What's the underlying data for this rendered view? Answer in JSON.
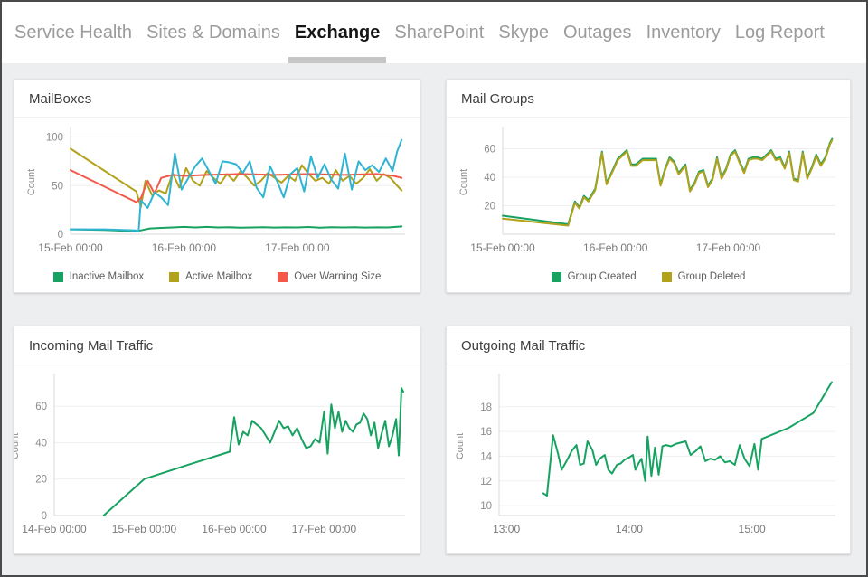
{
  "tabs": {
    "items": [
      {
        "label": "Service Health",
        "active": false
      },
      {
        "label": "Sites & Domains",
        "active": false
      },
      {
        "label": "Exchange",
        "active": true
      },
      {
        "label": "SharePoint",
        "active": false
      },
      {
        "label": "Skype",
        "active": false
      },
      {
        "label": "Outages",
        "active": false
      },
      {
        "label": "Inventory",
        "active": false
      },
      {
        "label": "Log Report",
        "active": false
      }
    ]
  },
  "colors": {
    "green": "#17a261",
    "olive": "#b1a11b",
    "red": "#f4584a",
    "cyan": "#2fb4d3",
    "grid": "#efefef",
    "axis": "#d9d9d9",
    "tick_text": "#8b8b8b",
    "active_tab_underline": "#c6c6c6"
  },
  "chart_data": [
    {
      "type": "line",
      "title": "MailBoxes",
      "ylabel": "Count",
      "ylim": [
        0,
        107
      ],
      "yticks": [
        0,
        50,
        100
      ],
      "xlim": [
        0,
        2.95
      ],
      "ml": 62,
      "xticks": [
        {
          "v": 0,
          "label": "15-Feb 00:00"
        },
        {
          "v": 1,
          "label": "16-Feb 00:00"
        },
        {
          "v": 2,
          "label": "17-Feb 00:00"
        }
      ],
      "legend": [
        {
          "label": "Inactive Mailbox",
          "color": "#17a261"
        },
        {
          "label": "Active Mailbox",
          "color": "#b1a11b"
        },
        {
          "label": "Over Warning Size",
          "color": "#f4584a"
        }
      ],
      "series": [
        {
          "name": "Inactive Mailbox",
          "color": "#17a261",
          "x": [
            0,
            0.3,
            0.58,
            0.62,
            0.7,
            0.8,
            0.9,
            1.0,
            1.1,
            1.2,
            1.3,
            1.4,
            1.5,
            1.6,
            1.7,
            1.8,
            1.9,
            2.0,
            2.1,
            2.2,
            2.3,
            2.4,
            2.5,
            2.6,
            2.7,
            2.8,
            2.92
          ],
          "y": [
            5,
            4.5,
            3,
            4,
            6,
            6.5,
            7,
            7.5,
            7,
            7.5,
            7,
            7.2,
            6.8,
            7,
            7.3,
            6.9,
            7.1,
            7,
            7.4,
            6.8,
            7.2,
            7,
            7.3,
            6.9,
            7.1,
            7,
            8
          ]
        },
        {
          "name": "Active Mailbox",
          "color": "#b1a11b",
          "x": [
            0,
            0.58,
            0.62,
            0.66,
            0.72,
            0.78,
            0.84,
            0.9,
            0.96,
            1.02,
            1.08,
            1.14,
            1.2,
            1.26,
            1.32,
            1.38,
            1.44,
            1.5,
            1.56,
            1.62,
            1.68,
            1.74,
            1.8,
            1.86,
            1.92,
            1.98,
            2.04,
            2.1,
            2.16,
            2.22,
            2.28,
            2.34,
            2.4,
            2.46,
            2.52,
            2.58,
            2.64,
            2.7,
            2.76,
            2.82,
            2.88,
            2.92
          ],
          "y": [
            88,
            44,
            28,
            55,
            40,
            45,
            42,
            63,
            48,
            68,
            55,
            50,
            65,
            58,
            52,
            62,
            55,
            65,
            58,
            50,
            55,
            63,
            58,
            53,
            60,
            55,
            71,
            62,
            55,
            58,
            52,
            66,
            55,
            60,
            52,
            58,
            67,
            55,
            62,
            58,
            50,
            45
          ]
        },
        {
          "name": "Over Warning Size",
          "color": "#f4584a",
          "x": [
            0,
            0.58,
            0.62,
            0.68,
            0.74,
            0.8,
            0.9,
            1.0,
            1.2,
            1.5,
            1.8,
            2.1,
            2.4,
            2.7,
            2.85,
            2.92
          ],
          "y": [
            66,
            33,
            37,
            55,
            42,
            58,
            61,
            60,
            61,
            62,
            61,
            62,
            61,
            62,
            60,
            58
          ]
        },
        {
          "name": "",
          "color": "#2fb4d3",
          "x": [
            0,
            0.3,
            0.58,
            0.6,
            0.62,
            0.68,
            0.74,
            0.8,
            0.86,
            0.92,
            0.98,
            1.04,
            1.1,
            1.16,
            1.22,
            1.28,
            1.34,
            1.4,
            1.46,
            1.52,
            1.58,
            1.64,
            1.7,
            1.76,
            1.82,
            1.88,
            1.94,
            2.0,
            2.06,
            2.12,
            2.18,
            2.24,
            2.3,
            2.36,
            2.42,
            2.48,
            2.54,
            2.6,
            2.66,
            2.72,
            2.78,
            2.84,
            2.88,
            2.92
          ],
          "y": [
            5,
            5,
            4,
            3,
            35,
            27,
            43,
            38,
            30,
            83,
            46,
            58,
            70,
            78,
            65,
            52,
            75,
            74,
            72,
            63,
            75,
            48,
            38,
            70,
            55,
            38,
            62,
            68,
            44,
            80,
            58,
            72,
            56,
            47,
            83,
            46,
            75,
            66,
            71,
            64,
            78,
            65,
            85,
            97
          ]
        }
      ]
    },
    {
      "type": "line",
      "title": "Mail Groups",
      "ylabel": "Count",
      "ylim": [
        0,
        73
      ],
      "yticks": [
        20,
        40,
        60
      ],
      "xlim": [
        0,
        2.95
      ],
      "ml": 62,
      "xticks": [
        {
          "v": 0,
          "label": "15-Feb 00:00"
        },
        {
          "v": 1,
          "label": "16-Feb 00:00"
        },
        {
          "v": 2,
          "label": "17-Feb 00:00"
        }
      ],
      "legend": [
        {
          "label": "Group Created",
          "color": "#17a261"
        },
        {
          "label": "Group Deleted",
          "color": "#b1a11b"
        }
      ],
      "series": [
        {
          "name": "Group Created",
          "color": "#17a261",
          "x": [
            0,
            0.58,
            0.64,
            0.68,
            0.72,
            0.76,
            0.82,
            0.88,
            0.92,
            0.98,
            1.02,
            1.06,
            1.1,
            1.14,
            1.18,
            1.24,
            1.3,
            1.36,
            1.4,
            1.44,
            1.48,
            1.52,
            1.56,
            1.62,
            1.66,
            1.7,
            1.74,
            1.78,
            1.82,
            1.86,
            1.9,
            1.94,
            1.98,
            2.02,
            2.06,
            2.1,
            2.14,
            2.18,
            2.22,
            2.26,
            2.3,
            2.34,
            2.38,
            2.42,
            2.46,
            2.5,
            2.54,
            2.58,
            2.62,
            2.66,
            2.7,
            2.74,
            2.78,
            2.82,
            2.86,
            2.9,
            2.92
          ],
          "y": [
            13,
            7,
            23,
            19,
            27,
            24,
            32,
            58,
            36,
            46,
            53,
            56,
            59,
            49,
            49,
            53,
            53,
            53,
            35,
            46,
            54,
            51,
            43,
            49,
            31,
            36,
            44,
            45,
            34,
            39,
            54,
            40,
            46,
            56,
            59,
            51,
            44,
            53,
            54,
            54,
            53,
            56,
            59,
            53,
            54,
            47,
            58,
            39,
            38,
            58,
            40,
            47,
            56,
            49,
            54,
            64,
            67
          ]
        },
        {
          "name": "Group Deleted",
          "color": "#b1a11b",
          "x": [
            0,
            0.58,
            0.64,
            0.68,
            0.72,
            0.76,
            0.82,
            0.88,
            0.92,
            0.98,
            1.02,
            1.06,
            1.1,
            1.14,
            1.18,
            1.24,
            1.3,
            1.36,
            1.4,
            1.44,
            1.48,
            1.52,
            1.56,
            1.62,
            1.66,
            1.7,
            1.74,
            1.78,
            1.82,
            1.86,
            1.9,
            1.94,
            1.98,
            2.02,
            2.06,
            2.1,
            2.14,
            2.18,
            2.22,
            2.26,
            2.3,
            2.34,
            2.38,
            2.42,
            2.46,
            2.5,
            2.54,
            2.58,
            2.62,
            2.66,
            2.7,
            2.74,
            2.78,
            2.82,
            2.86,
            2.9,
            2.92
          ],
          "y": [
            11,
            6,
            22,
            18,
            26,
            23,
            31,
            57,
            35,
            45,
            52,
            55,
            58,
            48,
            48,
            52,
            52,
            52,
            34,
            45,
            53,
            50,
            42,
            48,
            30,
            35,
            43,
            44,
            33,
            38,
            53,
            39,
            45,
            55,
            58,
            50,
            43,
            52,
            53,
            53,
            52,
            55,
            58,
            52,
            53,
            46,
            57,
            38,
            37,
            57,
            39,
            46,
            55,
            48,
            53,
            63,
            66
          ]
        }
      ]
    },
    {
      "type": "line",
      "title": "Incoming Mail Traffic",
      "ylabel": "Count",
      "ylim": [
        0,
        76
      ],
      "yticks": [
        0,
        20,
        40,
        60
      ],
      "xlim": [
        0,
        3.9
      ],
      "ml": 44,
      "xticks": [
        {
          "v": 0,
          "label": "14-Feb 00:00"
        },
        {
          "v": 1,
          "label": "15-Feb 00:00"
        },
        {
          "v": 2,
          "label": "16-Feb 00:00"
        },
        {
          "v": 3,
          "label": "17-Feb 00:00"
        }
      ],
      "legend": [],
      "series": [
        {
          "name": "Incoming Mail",
          "color": "#17a261",
          "x": [
            0.55,
            1.0,
            1.5,
            1.95,
            2.0,
            2.05,
            2.1,
            2.15,
            2.2,
            2.25,
            2.3,
            2.35,
            2.4,
            2.45,
            2.5,
            2.55,
            2.6,
            2.65,
            2.7,
            2.75,
            2.8,
            2.85,
            2.9,
            2.95,
            3.0,
            3.04,
            3.08,
            3.12,
            3.16,
            3.2,
            3.24,
            3.28,
            3.32,
            3.36,
            3.4,
            3.44,
            3.48,
            3.52,
            3.56,
            3.6,
            3.64,
            3.68,
            3.72,
            3.76,
            3.8,
            3.83,
            3.86,
            3.88
          ],
          "y": [
            0,
            20,
            28,
            35,
            54,
            39,
            46,
            44,
            52,
            50,
            48,
            44,
            40,
            46,
            52,
            48,
            49,
            44,
            48,
            42,
            37,
            38,
            42,
            40,
            57,
            34,
            61,
            48,
            57,
            46,
            52,
            48,
            46,
            50,
            51,
            56,
            53,
            44,
            51,
            37,
            45,
            52,
            38,
            44,
            53,
            33,
            70,
            68
          ]
        }
      ]
    },
    {
      "type": "line",
      "title": "Outgoing Mail Traffic",
      "ylabel": "Count",
      "ylim": [
        9.2,
        20.4
      ],
      "yticks": [
        10,
        12,
        14,
        16,
        18
      ],
      "xlim": [
        -0.06,
        2.68
      ],
      "ml": 58,
      "xticks": [
        {
          "v": 0,
          "label": "13:00"
        },
        {
          "v": 1,
          "label": "14:00"
        },
        {
          "v": 2,
          "label": "15:00"
        }
      ],
      "legend": [],
      "series": [
        {
          "name": "Outgoing Mail",
          "color": "#17a261",
          "x": [
            0.3,
            0.33,
            0.38,
            0.42,
            0.45,
            0.5,
            0.53,
            0.57,
            0.6,
            0.63,
            0.66,
            0.7,
            0.73,
            0.76,
            0.8,
            0.83,
            0.86,
            0.9,
            0.93,
            0.96,
            1.0,
            1.03,
            1.05,
            1.08,
            1.1,
            1.13,
            1.15,
            1.18,
            1.21,
            1.24,
            1.27,
            1.3,
            1.34,
            1.38,
            1.42,
            1.46,
            1.5,
            1.54,
            1.58,
            1.62,
            1.66,
            1.7,
            1.74,
            1.78,
            1.82,
            1.86,
            1.9,
            1.94,
            1.98,
            2.02,
            2.05,
            2.08,
            2.3,
            2.5,
            2.65
          ],
          "y": [
            11.0,
            10.8,
            15.7,
            14.2,
            12.9,
            13.8,
            14.4,
            14.9,
            13.3,
            13.4,
            15.2,
            14.5,
            13.3,
            13.8,
            14.1,
            12.9,
            12.6,
            13.3,
            13.4,
            13.7,
            13.9,
            14.1,
            12.9,
            13.5,
            13.8,
            12.0,
            15.6,
            12.4,
            14.7,
            12.5,
            14.8,
            14.9,
            14.8,
            15.0,
            15.1,
            15.2,
            14.1,
            14.4,
            14.8,
            13.6,
            13.8,
            13.7,
            14.0,
            13.5,
            13.6,
            13.3,
            14.9,
            13.8,
            13.2,
            15.0,
            12.9,
            15.4,
            16.3,
            17.5,
            20.0
          ]
        }
      ]
    }
  ]
}
